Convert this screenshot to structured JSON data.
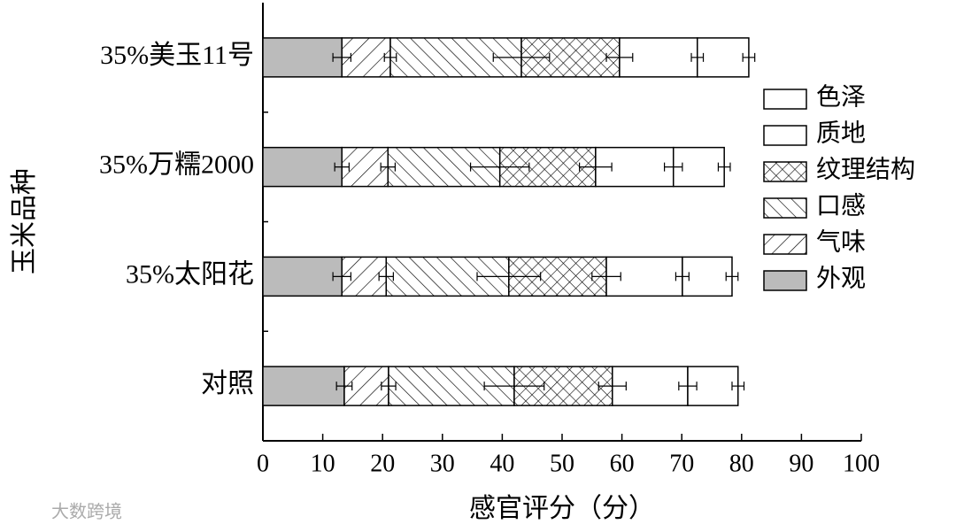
{
  "chart_data": {
    "type": "stacked-barh",
    "xlabel": "感官评分（分）",
    "ylabel": "玉米品种",
    "categories": [
      "35%美玉11号",
      "35%万糯2000",
      "35%太阳花",
      "对照"
    ],
    "series": [
      {
        "name": "外观",
        "color": "#bbbbbb",
        "pattern": "solid",
        "values": [
          13.2,
          13.2,
          13.2,
          13.6
        ],
        "errors": [
          1.5,
          1.2,
          1.5,
          1.3
        ]
      },
      {
        "name": "气味",
        "color": "#000000",
        "pattern": "hatch-forward",
        "values": [
          8.1,
          7.7,
          7.4,
          7.4
        ],
        "errors": [
          1.0,
          1.2,
          1.2,
          1.2
        ]
      },
      {
        "name": "口感",
        "color": "#000000",
        "pattern": "hatch-back",
        "values": [
          21.9,
          18.7,
          20.5,
          21.0
        ],
        "errors": [
          4.7,
          4.9,
          5.3,
          5.0
        ]
      },
      {
        "name": "纹理结构",
        "color": "#000000",
        "pattern": "crosshatch",
        "values": [
          16.4,
          16.0,
          16.3,
          16.4
        ],
        "errors": [
          2.2,
          2.7,
          2.4,
          2.3
        ]
      },
      {
        "name": "质地",
        "color": "#ffffff",
        "pattern": "none",
        "values": [
          13.0,
          13.0,
          12.7,
          12.6
        ],
        "errors": [
          1.0,
          1.5,
          1.1,
          1.5
        ]
      },
      {
        "name": "色泽",
        "color": "#ffffff",
        "pattern": "none",
        "values": [
          8.6,
          8.5,
          8.3,
          8.4
        ],
        "errors": [
          1.0,
          1.0,
          1.0,
          1.0
        ]
      }
    ],
    "xlim": [
      0,
      100
    ],
    "xticks": [
      0,
      10,
      20,
      30,
      40,
      50,
      60,
      70,
      80,
      90,
      100
    ],
    "legend": "right",
    "watermark": "大数跨境"
  }
}
